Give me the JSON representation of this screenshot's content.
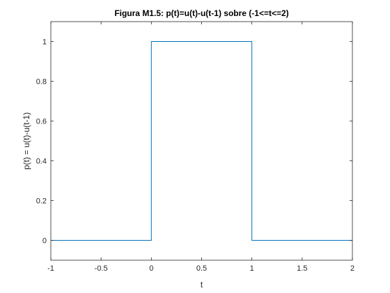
{
  "chart_data": {
    "type": "line",
    "title": "Figura M1.5: p(t)=u(t)-u(t-1) sobre (-1<=t<=2)",
    "xlabel": "t",
    "ylabel": "p(t) = u(t)-u(t-1)",
    "xlim": [
      -1,
      2
    ],
    "ylim": [
      -0.1,
      1.1
    ],
    "xticks": [
      -1,
      -0.5,
      0,
      0.5,
      1,
      1.5,
      2
    ],
    "xtick_labels": [
      "-1",
      "-0.5",
      "0",
      "0.5",
      "1",
      "1.5",
      "2"
    ],
    "yticks": [
      0,
      0.2,
      0.4,
      0.6,
      0.8,
      1
    ],
    "ytick_labels": [
      "0",
      "0.2",
      "0.4",
      "0.6",
      "0.8",
      "1"
    ],
    "grid": false,
    "series": [
      {
        "color": "#0072BD",
        "x": [
          -1,
          0,
          0,
          1,
          1,
          2
        ],
        "y": [
          0,
          0,
          1,
          1,
          0,
          0
        ]
      }
    ]
  }
}
